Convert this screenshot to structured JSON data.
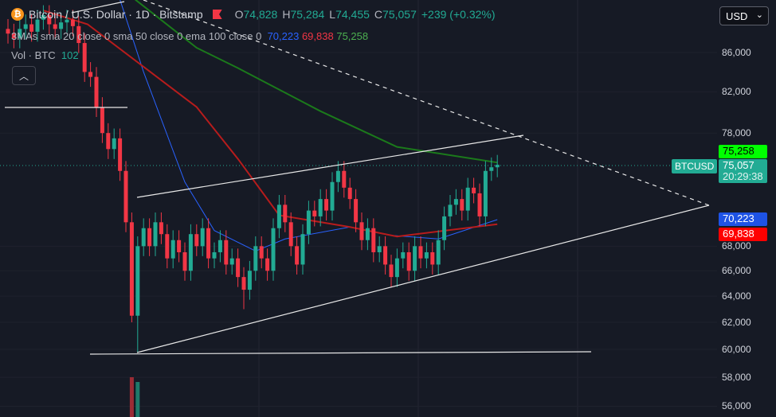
{
  "header": {
    "title": "Bitcoin / U.S. Dollar · 1D · Bitstamp",
    "open_label": "O",
    "open": "74,828",
    "high_label": "H",
    "high": "75,284",
    "low_label": "L",
    "low": "74,455",
    "close_label": "C",
    "close": "75,057",
    "change": "+239 (+0.32%)"
  },
  "indicators": {
    "ma_label": "3MAs sma 20 close 0 sma 50 close 0 ema 100 close 0",
    "sma20": "70,223",
    "sma50": "69,838",
    "ema100": "75,258",
    "vol_label": "Vol · BTC",
    "vol": "102",
    "collapse_icon": "chevron-up-icon"
  },
  "currency": {
    "selected": "USD"
  },
  "price_tags": {
    "ema100": "75,258",
    "symbol": "BTCUSD",
    "last": "75,057",
    "countdown": "20:29:38",
    "sma20": "70,223",
    "sma50": "69,838"
  },
  "colors": {
    "up": "#22ab94",
    "down": "#f23645",
    "sma20": "#2962ff",
    "sma50": "#b71c1c",
    "ema100": "#1b7a1b",
    "ema_tag": "#00ff00"
  },
  "chart_data": {
    "type": "candlestick",
    "title": "Bitcoin / U.S. Dollar · 1D · Bitstamp",
    "y_ticks": [
      "86,000",
      "82,000",
      "78,000",
      "68,000",
      "66,000",
      "64,000",
      "62,000",
      "60,000",
      "58,000",
      "56,000"
    ],
    "y_tick_values": [
      86000,
      82000,
      78000,
      68000,
      66000,
      64000,
      62000,
      60000,
      58000,
      56000
    ],
    "ylim": [
      55500,
      92000
    ],
    "scale": "log",
    "first_open": 88500,
    "closes": [
      88000,
      87500,
      88500,
      89000,
      88200,
      89500,
      90000,
      89000,
      88500,
      89200,
      89500,
      88800,
      87000,
      84000,
      83500,
      80500,
      78000,
      76500,
      77500,
      74500,
      70000,
      62500,
      68000,
      69500,
      68000,
      70000,
      69000,
      67000,
      68500,
      67500,
      66000,
      69000,
      68000,
      69500,
      67000,
      67500,
      68500,
      66500,
      67000,
      65500,
      64500,
      66000,
      68000,
      67000,
      66000,
      69500,
      71500,
      70000,
      68000,
      66500,
      69000,
      71000,
      70500,
      72000,
      71000,
      73500,
      74500,
      73000,
      72000,
      70000,
      68500,
      69500,
      67500,
      68000,
      66500,
      65500,
      67000,
      67500,
      66000,
      68000,
      67000,
      67500,
      66500,
      68500,
      70500,
      71500,
      72000,
      71000,
      73000,
      72500,
      70500,
      74500,
      74828,
      75057
    ],
    "special_lows": {
      "21": 62000,
      "22": 59800,
      "40": 63000
    },
    "moving_averages": [
      {
        "name": "sma 20",
        "color": "#2962ff",
        "points": [
          [
            19,
            91700
          ],
          [
            23,
            84000
          ],
          [
            30,
            73500
          ],
          [
            35,
            69300
          ],
          [
            42,
            67600
          ],
          [
            47,
            68600
          ],
          [
            58,
            69600
          ],
          [
            65,
            68900
          ],
          [
            73,
            68600
          ],
          [
            83,
            70223
          ]
        ]
      },
      {
        "name": "sma 50",
        "color": "#b71c1c",
        "points": [
          [
            6,
            90500
          ],
          [
            13.5,
            89000
          ],
          [
            32,
            80500
          ],
          [
            39,
            75600
          ],
          [
            46,
            70600
          ],
          [
            58,
            69600
          ],
          [
            66,
            68800
          ],
          [
            83,
            69838
          ]
        ]
      },
      {
        "name": "ema 100",
        "color": "#1b7a1b",
        "points": [
          [
            21.6,
            91700
          ],
          [
            32,
            86500
          ],
          [
            39,
            84400
          ],
          [
            53,
            80100
          ],
          [
            66,
            76700
          ],
          [
            83,
            75258
          ]
        ]
      }
    ],
    "volume": [
      {
        "index": 21,
        "dir": "down"
      },
      {
        "index": 22,
        "dir": "up"
      }
    ]
  }
}
